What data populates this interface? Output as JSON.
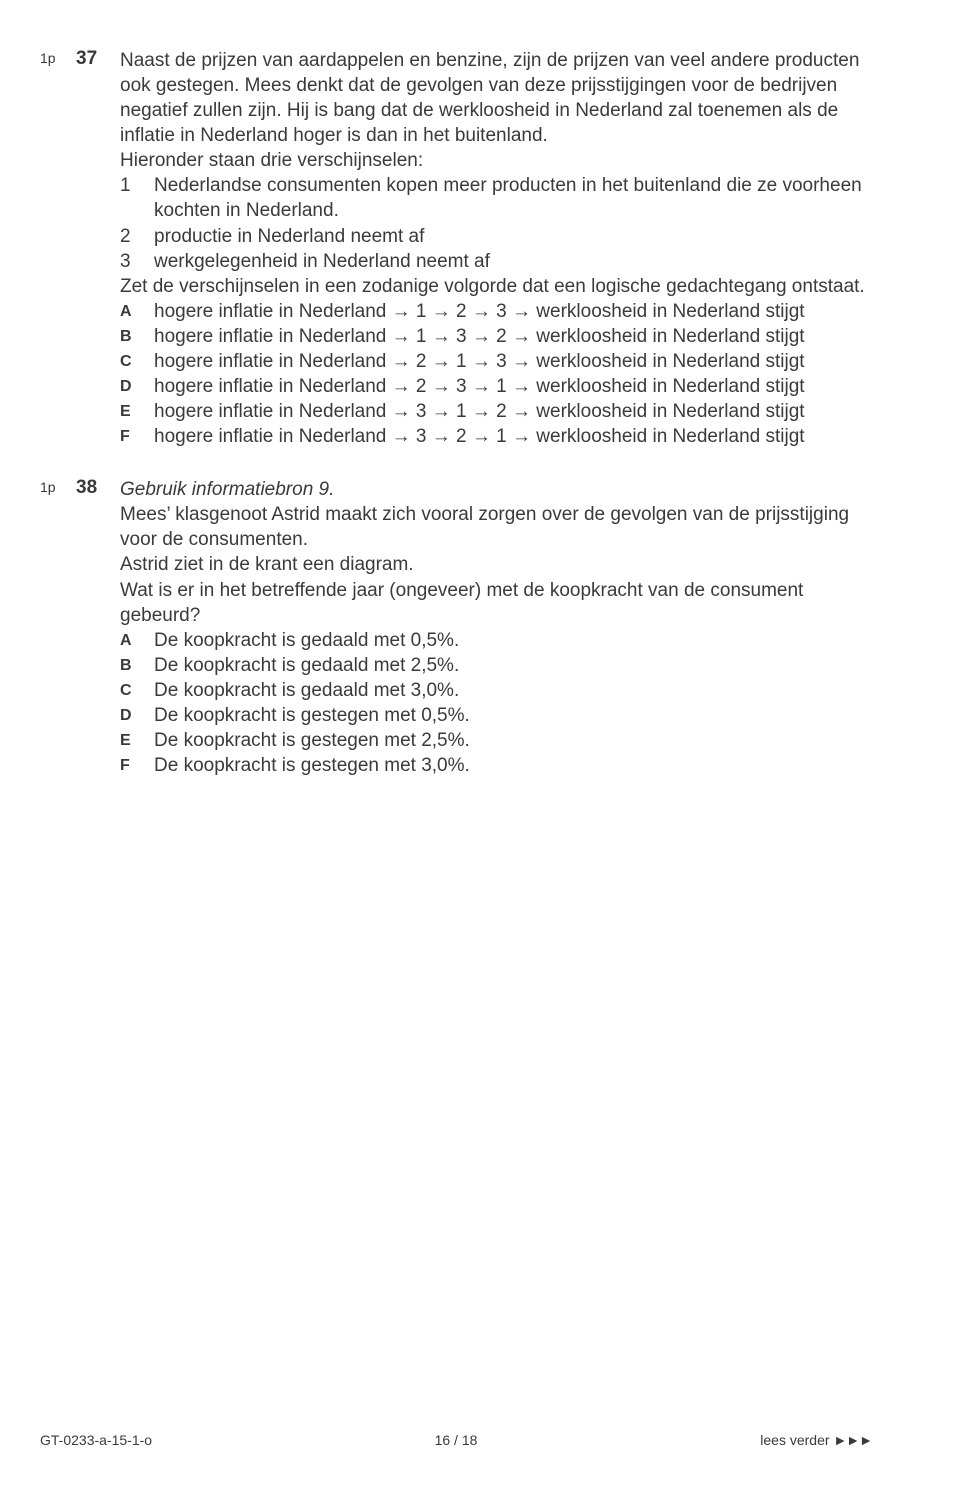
{
  "q37": {
    "points": "1p",
    "number": "37",
    "intro": [
      "Naast de prijzen van aardappelen en benzine, zijn de prijzen van veel andere producten ook gestegen. Mees denkt dat de gevolgen van deze prijsstijgingen voor de bedrijven negatief zullen zijn. Hij is bang dat de werkloosheid in Nederland zal toenemen als de inflatie in Nederland hoger is dan in het buitenland.",
      "Hieronder staan drie verschijnselen:"
    ],
    "numbered": [
      {
        "n": "1",
        "t": "Nederlandse consumenten kopen meer producten in het buitenland die ze voorheen kochten in Nederland."
      },
      {
        "n": "2",
        "t": "productie in Nederland neemt af"
      },
      {
        "n": "3",
        "t": "werkgelegenheid in Nederland neemt af"
      }
    ],
    "instruction": "Zet de verschijnselen in een zodanige volgorde dat een logische gedachtegang ontstaat.",
    "options": [
      {
        "l": "A",
        "t": "hogere inflatie in Nederland → 1 → 2 → 3 → werkloosheid in Nederland stijgt"
      },
      {
        "l": "B",
        "t": "hogere inflatie in Nederland → 1 → 3 → 2 → werkloosheid in Nederland stijgt"
      },
      {
        "l": "C",
        "t": "hogere inflatie in Nederland → 2 → 1 → 3 → werkloosheid in Nederland stijgt"
      },
      {
        "l": "D",
        "t": "hogere inflatie in Nederland → 2 → 3 → 1 → werkloosheid in Nederland stijgt"
      },
      {
        "l": "E",
        "t": "hogere inflatie in Nederland → 3 → 1 → 2 → werkloosheid in Nederland stijgt"
      },
      {
        "l": "F",
        "t": "hogere inflatie in Nederland → 3 → 2 → 1 → werkloosheid in Nederland stijgt"
      }
    ]
  },
  "q38": {
    "points": "1p",
    "number": "38",
    "source": "Gebruik informatiebron 9.",
    "intro": [
      "Mees’ klasgenoot Astrid maakt zich vooral zorgen over de gevolgen van de prijsstijging voor de consumenten.",
      "Astrid ziet in de krant een diagram.",
      "Wat is er in het betreffende jaar (ongeveer) met de koopkracht van de consument gebeurd?"
    ],
    "options": [
      {
        "l": "A",
        "t": "De koopkracht is gedaald met 0,5%."
      },
      {
        "l": "B",
        "t": "De koopkracht is gedaald met 2,5%."
      },
      {
        "l": "C",
        "t": "De koopkracht is gedaald met 3,0%."
      },
      {
        "l": "D",
        "t": "De koopkracht is gestegen met 0,5%."
      },
      {
        "l": "E",
        "t": "De koopkracht is gestegen met 2,5%."
      },
      {
        "l": "F",
        "t": "De koopkracht is gestegen met 3,0%."
      }
    ]
  },
  "footer": {
    "left": "GT-0233-a-15-1-o",
    "mid": "16 / 18",
    "right_text": "lees verder ",
    "right_arrows": "►►►"
  }
}
